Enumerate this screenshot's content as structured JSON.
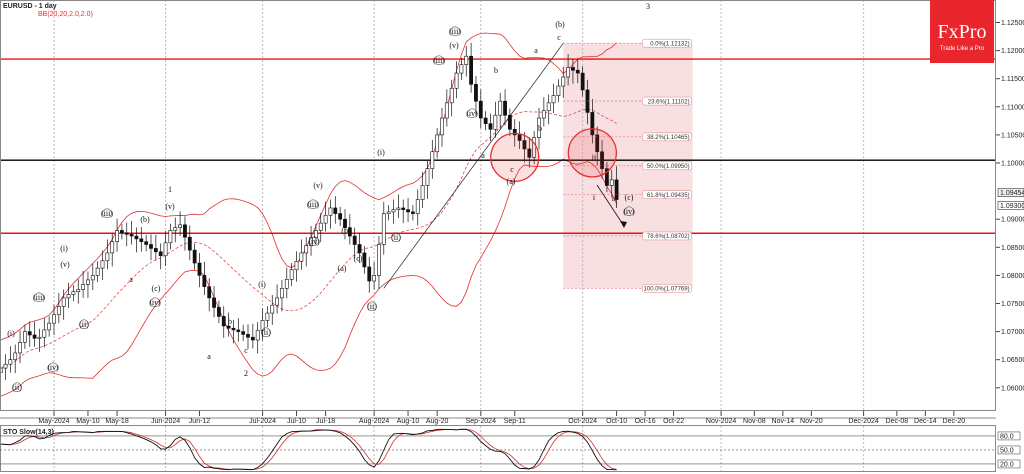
{
  "header": {
    "symbol_title": "EURUSD - 1 day",
    "indicator_label": "BB(20,20,2.0,2.0)"
  },
  "logo": {
    "brand": "FxPro",
    "tagline": "Trade Like a Pro",
    "color": "#e8262b"
  },
  "colors": {
    "bollinger": "#e03030",
    "resistance_lines": "#ee1111",
    "pivot_line": "#000000",
    "fib_zone": "#f6d6d8",
    "circles": "#e83030",
    "sto_k": "#111111",
    "sto_d": "#d03030"
  },
  "chart_data": {
    "type": "candlestick",
    "symbol": "EURUSD",
    "timeframe": "1 day",
    "first_bar_date": "2024-04-16",
    "close": [
      1.0635,
      1.0642,
      1.065,
      1.0662,
      1.0681,
      1.07,
      1.0694,
      1.0688,
      1.069,
      1.0703,
      1.0715,
      1.073,
      1.0745,
      1.076,
      1.0766,
      1.0771,
      1.0775,
      1.0784,
      1.0792,
      1.08,
      1.0813,
      1.0826,
      1.084,
      1.086,
      1.088,
      1.0876,
      1.0873,
      1.087,
      1.0865,
      1.086,
      1.0855,
      1.0848,
      1.0842,
      1.0835,
      1.0858,
      1.088,
      1.0885,
      1.089,
      1.0868,
      1.0845,
      1.0822,
      1.08,
      1.078,
      1.076,
      1.0743,
      1.0727,
      1.071,
      1.0706,
      1.0703,
      1.07,
      1.0695,
      1.069,
      1.0685,
      1.0702,
      1.072,
      1.0733,
      1.0747,
      1.076,
      1.0777,
      1.0793,
      1.081,
      1.0825,
      1.084,
      1.0853,
      1.0867,
      1.088,
      1.0893,
      1.0907,
      1.092,
      1.091,
      1.09,
      1.0885,
      1.087,
      1.0855,
      1.084,
      1.0815,
      1.079,
      1.08,
      1.0855,
      1.091,
      1.0913,
      1.0917,
      1.092,
      1.0917,
      1.0913,
      1.091,
      1.0935,
      1.096,
      1.099,
      1.102,
      1.105,
      1.108,
      1.1107,
      1.1133,
      1.116,
      1.1175,
      1.119,
      1.114,
      1.111,
      1.108,
      1.107,
      1.106,
      1.1085,
      1.111,
      1.1085,
      1.106,
      1.105,
      1.104,
      1.1025,
      1.101,
      1.1045,
      1.108,
      1.1093,
      1.1107,
      1.112,
      1.1137,
      1.1153,
      1.117,
      1.1165,
      1.116,
      1.113,
      1.109,
      1.105,
      1.102,
      1.099,
      1.096,
      1.097,
      1.0935
    ],
    "y_ticks": [
      "1.12500",
      "1.12000",
      "1.11500",
      "1.11000",
      "1.10500",
      "1.10000",
      "1.09000",
      "1.08500",
      "1.08000",
      "1.07500",
      "1.07000",
      "1.06500",
      "1.06000"
    ],
    "ylim": [
      1.055,
      1.128
    ],
    "price_markers": [
      "1.09454",
      "1.09300"
    ],
    "x_ticks": [
      {
        "label": "May-2024",
        "date": "2024-05-01"
      },
      {
        "label": "May-10",
        "date": "2024-05-10"
      },
      {
        "label": "May-18",
        "date": "2024-05-20"
      },
      {
        "label": "Jun-2024",
        "date": "2024-06-03"
      },
      {
        "label": "Jun-12",
        "date": "2024-06-12"
      },
      {
        "label": "Jul-2024",
        "date": "2024-07-01"
      },
      {
        "label": "Jul-10",
        "date": "2024-07-10"
      },
      {
        "label": "Jul-18",
        "date": "2024-07-18"
      },
      {
        "label": "Aug-2024",
        "date": "2024-08-01"
      },
      {
        "label": "Aug-10",
        "date": "2024-08-12"
      },
      {
        "label": "Aug-20",
        "date": "2024-08-20"
      },
      {
        "label": "Sep-2024",
        "date": "2024-09-02"
      },
      {
        "label": "Sep-11",
        "date": "2024-09-11"
      },
      {
        "label": "Oct-2024",
        "date": "2024-10-01"
      },
      {
        "label": "Oct-10",
        "date": "2024-10-10"
      },
      {
        "label": "Oct-16",
        "date": "2024-10-16"
      },
      {
        "label": "Oct-22",
        "date": "2024-10-22"
      },
      {
        "label": "Nov-2024",
        "date": "2024-11-01"
      },
      {
        "label": "Nov-08",
        "date": "2024-11-08"
      },
      {
        "label": "Nov-14",
        "date": "2024-11-14"
      },
      {
        "label": "Nov-20",
        "date": "2024-11-20"
      },
      {
        "label": "Dec-2024",
        "date": "2024-12-01"
      },
      {
        "label": "Dec-08",
        "date": "2024-12-08"
      },
      {
        "label": "Dec-14",
        "date": "2024-12-14"
      },
      {
        "label": "Dec-20",
        "date": "2024-12-20"
      }
    ],
    "horizontal_lines": [
      {
        "price": 1.1185,
        "color": "#ee1111"
      },
      {
        "price": 1.1005,
        "color": "#000000"
      },
      {
        "price": 1.0875,
        "color": "#ee1111"
      }
    ],
    "fibonacci": {
      "start_date": "2024-09-25",
      "end_date": "2024-10-22",
      "levels": [
        {
          "label": "0.0%(1.12132)",
          "price": 1.12132
        },
        {
          "label": "23.6%(1.11102)",
          "price": 1.11102
        },
        {
          "label": "38.2%(1.10465)",
          "price": 1.10465
        },
        {
          "label": "50.0%(1.09950)",
          "price": 1.0995
        },
        {
          "label": "61.8%(1.09435)",
          "price": 1.09435
        },
        {
          "label": "78.6%(1.08702)",
          "price": 1.08702
        },
        {
          "label": "100.0%(1.07769)",
          "price": 1.07769
        }
      ]
    },
    "trendline": [
      {
        "date": "2024-08-05",
        "price": 1.0777
      },
      {
        "date": "2024-09-25",
        "price": 1.1213
      }
    ],
    "circles": [
      {
        "date": "2024-09-11",
        "price": 1.101
      },
      {
        "date": "2024-10-03",
        "price": 1.1018
      }
    ],
    "wave_labels": [
      "3",
      "(b)",
      "c",
      "a",
      "b",
      "b",
      "a",
      "c",
      "(a)",
      "i",
      "ii",
      "(c)",
      "(iv)",
      "(iii)",
      "(v)",
      "(iii)",
      "(iv)",
      "(i)",
      "(ii)",
      "(ii)",
      "(v)",
      "(iii)",
      "(iv)",
      "(b)",
      "(a)",
      "(c)",
      "(i)",
      "(ii)",
      "a",
      "b",
      "c",
      "2",
      "1",
      "(v)",
      "(b)",
      "(c)",
      "(iv)",
      "(iii)",
      "a",
      "(i)",
      "(v)",
      "(iii)",
      "(ii)",
      "(iv)",
      "(i)",
      "(ii)",
      "ii"
    ],
    "bollinger": {
      "period": 20,
      "deviations": 2.0
    },
    "stochastic": {
      "title": "STO Slow(14,3)",
      "k": 14,
      "d": 3,
      "levels": [
        "80.0",
        "50.0",
        "20.0"
      ]
    }
  }
}
